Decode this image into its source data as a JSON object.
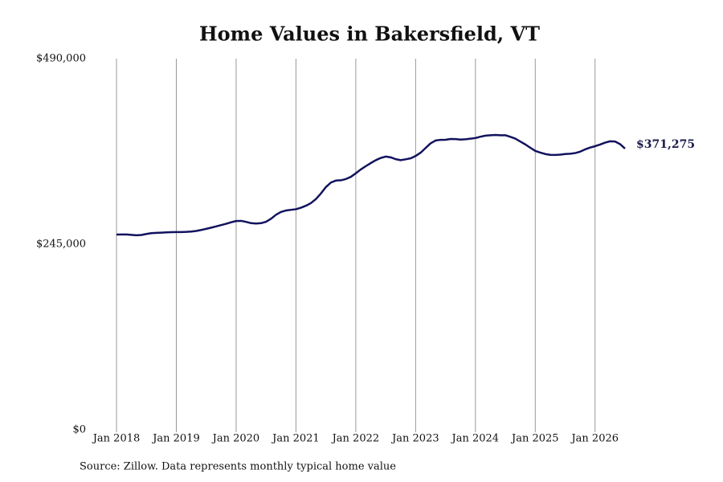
{
  "chart_data": {
    "type": "line",
    "title": "Home Values in Bakersfield, VT",
    "source": "Source: Zillow. Data represents monthly typical home value",
    "x": [
      "2018-01",
      "2018-02",
      "2018-03",
      "2018-04",
      "2018-05",
      "2018-06",
      "2018-07",
      "2018-08",
      "2018-09",
      "2018-10",
      "2018-11",
      "2018-12",
      "2019-01",
      "2019-02",
      "2019-03",
      "2019-04",
      "2019-05",
      "2019-06",
      "2019-07",
      "2019-08",
      "2019-09",
      "2019-10",
      "2019-11",
      "2019-12",
      "2020-01",
      "2020-02",
      "2020-03",
      "2020-04",
      "2020-05",
      "2020-06",
      "2020-07",
      "2020-08",
      "2020-09",
      "2020-10",
      "2020-11",
      "2020-12",
      "2021-01",
      "2021-02",
      "2021-03",
      "2021-04",
      "2021-05",
      "2021-06",
      "2021-07",
      "2021-08",
      "2021-09",
      "2021-10",
      "2021-11",
      "2021-12",
      "2022-01",
      "2022-02",
      "2022-03",
      "2022-04",
      "2022-05",
      "2022-06",
      "2022-07",
      "2022-08",
      "2022-09",
      "2022-10",
      "2022-11",
      "2022-12",
      "2023-01",
      "2023-02",
      "2023-03",
      "2023-04",
      "2023-05",
      "2023-06",
      "2023-07",
      "2023-08",
      "2023-09",
      "2023-10",
      "2023-11",
      "2023-12",
      "2024-01",
      "2024-02",
      "2024-03",
      "2024-04",
      "2024-05",
      "2024-06",
      "2024-07",
      "2024-08",
      "2024-09",
      "2024-10",
      "2024-11",
      "2024-12",
      "2025-01",
      "2025-02",
      "2025-03",
      "2025-04",
      "2025-05",
      "2025-06",
      "2025-07",
      "2025-08",
      "2025-09",
      "2025-10",
      "2025-11",
      "2025-12",
      "2026-01",
      "2026-02",
      "2026-03",
      "2026-04",
      "2026-05",
      "2026-06",
      "2026-07"
    ],
    "series": [
      {
        "name": "Home value",
        "color": "#12125e",
        "values": [
          257700,
          257900,
          257800,
          257300,
          256800,
          257200,
          258500,
          259600,
          260000,
          260300,
          260600,
          260900,
          261000,
          261100,
          261300,
          261700,
          262500,
          263800,
          265300,
          266900,
          268500,
          270300,
          272000,
          274000,
          275600,
          275800,
          274500,
          272800,
          272300,
          272800,
          274600,
          278600,
          283900,
          287600,
          289500,
          290400,
          291200,
          293200,
          295800,
          299300,
          304600,
          311900,
          320400,
          326400,
          329000,
          329400,
          331000,
          333900,
          338600,
          343700,
          348000,
          352100,
          355900,
          358900,
          360700,
          359700,
          357300,
          356000,
          357100,
          358400,
          361500,
          365800,
          372000,
          378200,
          381900,
          382800,
          382900,
          383900,
          383800,
          383100,
          383500,
          384300,
          385200,
          386900,
          388300,
          388900,
          389200,
          388800,
          388900,
          386800,
          384400,
          380600,
          376800,
          372400,
          368200,
          366000,
          364100,
          363000,
          362900,
          363300,
          364100,
          364500,
          365300,
          367200,
          370200,
          372600,
          374400,
          376600,
          379100,
          380900,
          380600,
          377200,
          371275
        ],
        "value_labels": [
          null,
          null,
          null,
          null,
          null,
          null,
          null,
          null,
          null,
          null,
          null,
          null,
          null,
          null,
          null,
          null,
          null,
          null,
          null,
          null,
          null,
          null,
          null,
          null,
          null,
          null,
          null,
          null,
          null,
          null,
          null,
          null,
          null,
          null,
          null,
          null,
          null,
          null,
          null,
          null,
          null,
          null,
          null,
          null,
          null,
          null,
          null,
          null,
          null,
          null,
          null,
          null,
          null,
          null,
          null,
          null,
          null,
          null,
          null,
          null,
          null,
          null,
          null,
          null,
          null,
          null,
          null,
          null,
          null,
          null,
          null,
          null,
          null,
          null,
          null,
          null,
          null,
          null,
          null,
          null,
          null,
          null,
          null,
          null,
          null,
          null,
          null,
          null,
          null,
          null,
          null,
          null,
          null,
          null,
          null,
          null,
          null,
          null,
          null,
          null,
          null,
          null,
          "$371,275"
        ]
      }
    ],
    "xlim": [
      "2018-01",
      "2026-07"
    ],
    "xticks": [
      {
        "value": "2018-01",
        "label": "Jan 2018"
      },
      {
        "value": "2019-01",
        "label": "Jan 2019"
      },
      {
        "value": "2020-01",
        "label": "Jan 2020"
      },
      {
        "value": "2021-01",
        "label": "Jan 2021"
      },
      {
        "value": "2022-01",
        "label": "Jan 2022"
      },
      {
        "value": "2023-01",
        "label": "Jan 2023"
      },
      {
        "value": "2024-01",
        "label": "Jan 2024"
      },
      {
        "value": "2025-01",
        "label": "Jan 2025"
      },
      {
        "value": "2026-01",
        "label": "Jan 2026"
      }
    ],
    "ylim": [
      0,
      490000
    ],
    "yticks": [
      {
        "value": 0,
        "label": "$0"
      },
      {
        "value": 245000,
        "label": "$245,000"
      },
      {
        "value": 490000,
        "label": "$490,000"
      }
    ],
    "grid": "x"
  }
}
